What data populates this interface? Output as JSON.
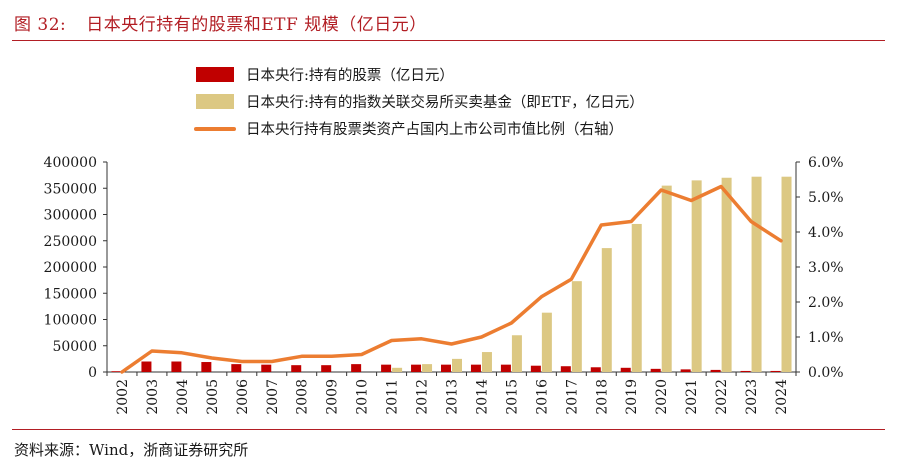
{
  "figure": {
    "number": "图 32:",
    "title": "日本央行持有的股票和ETF 规模（亿日元）",
    "source": "资料来源：Wind，浙商证券研究所"
  },
  "chart_data": {
    "type": "bar",
    "categories": [
      "2002",
      "2003",
      "2004",
      "2005",
      "2006",
      "2007",
      "2008",
      "2009",
      "2010",
      "2011",
      "2012",
      "2013",
      "2014",
      "2015",
      "2016",
      "2017",
      "2018",
      "2019",
      "2020",
      "2021",
      "2022",
      "2023",
      "2024"
    ],
    "series": [
      {
        "name": "日本央行:持有的股票（亿日元）",
        "kind": "bar",
        "axis": "left",
        "color": "#c00000",
        "values": [
          1500,
          20000,
          20000,
          19000,
          15000,
          14000,
          13000,
          13000,
          15000,
          14000,
          14000,
          14000,
          14000,
          14000,
          12000,
          11000,
          9000,
          8000,
          6000,
          5000,
          4000,
          2000,
          2000
        ]
      },
      {
        "name": "日本央行:持有的指数关联交易所买卖基金（即ETF，亿日元）",
        "kind": "bar",
        "axis": "left",
        "color": "#dcc883",
        "values": [
          0,
          0,
          0,
          0,
          0,
          0,
          0,
          0,
          0,
          8000,
          15000,
          25000,
          38000,
          70000,
          113000,
          173000,
          236000,
          282000,
          355000,
          365000,
          370000,
          372000,
          372000
        ]
      },
      {
        "name": "日本央行持有股票类资产占国内上市公司市值比例（右轴）",
        "kind": "line",
        "axis": "right",
        "color": "#ec7d31",
        "values": [
          0.0,
          0.6,
          0.55,
          0.4,
          0.3,
          0.3,
          0.45,
          0.45,
          0.5,
          0.9,
          0.95,
          0.8,
          1.0,
          1.4,
          2.15,
          2.65,
          4.2,
          4.3,
          5.2,
          4.9,
          5.3,
          4.3,
          3.75
        ]
      }
    ],
    "left_axis": {
      "ylim": [
        0,
        400000
      ],
      "ticks": [
        "0",
        "50000",
        "100000",
        "150000",
        "200000",
        "250000",
        "300000",
        "350000",
        "400000"
      ]
    },
    "right_axis": {
      "ylim": [
        0,
        6
      ],
      "ticks": [
        "0.0%",
        "1.0%",
        "2.0%",
        "3.0%",
        "4.0%",
        "5.0%",
        "6.0%"
      ]
    },
    "legend_position": "top-left",
    "grid": false
  }
}
